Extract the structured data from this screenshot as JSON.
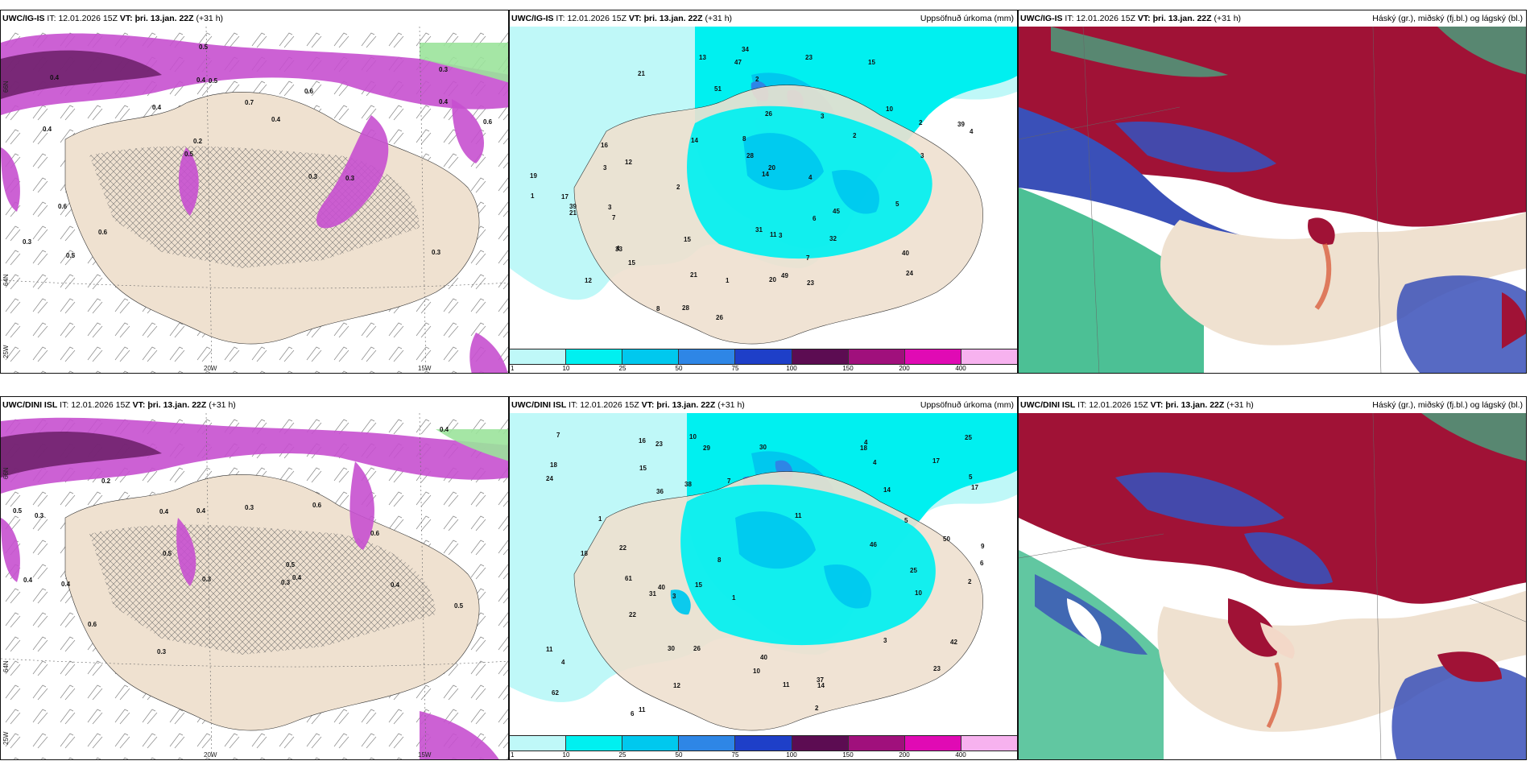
{
  "panels": [
    {
      "model": "UWC/IG-IS",
      "it_label": "IT:",
      "it_value": "12.01.2026 15Z",
      "vt_label": "VT:",
      "vt_value": "þri. 13.jan. 22Z",
      "lead": "(+31 h)",
      "product": "",
      "axis_labels": {
        "lon_a": "20W",
        "lon_b": "15W",
        "lat": "64N",
        "lat_b": "66N",
        "lon_c": "25W"
      },
      "value_labels": [
        "0.3",
        "0.4",
        "0.3",
        "0.5",
        "0.6",
        "0.5",
        "0.4",
        "0.7",
        "0.6",
        "0.4",
        "0.3",
        "0.6",
        "0.5",
        "0.4",
        "0.3",
        "0.4",
        "0.5",
        "0.6",
        "0.3",
        "0.4",
        "0.2"
      ]
    },
    {
      "model": "UWC/IG-IS",
      "it_label": "IT:",
      "it_value": "12.01.2026 15Z",
      "vt_label": "VT:",
      "vt_value": "þri. 13.jan. 22Z",
      "lead": "(+31 h)",
      "product": "Uppsöfnuð úrkoma (mm)",
      "value_labels": [
        "12",
        "15",
        "21",
        "10",
        "11",
        "12",
        "7",
        "4",
        "2",
        "2",
        "17",
        "34",
        "32",
        "14",
        "26",
        "13",
        "24",
        "19",
        "33",
        "28",
        "23",
        "47",
        "51",
        "20",
        "28",
        "21",
        "39",
        "23",
        "26",
        "45",
        "16",
        "15",
        "49",
        "31",
        "40",
        "21",
        "39",
        "4",
        "3",
        "5",
        "4",
        "2",
        "1",
        "3",
        "1",
        "3",
        "6",
        "20",
        "15",
        "7",
        "14",
        "8",
        "8",
        "3",
        "2",
        "3"
      ],
      "colorbar": [
        "1",
        "10",
        "25",
        "50",
        "75",
        "100",
        "150",
        "200",
        "400"
      ]
    },
    {
      "model": "UWC/IG-IS",
      "it_label": "IT:",
      "it_value": "12.01.2026 15Z",
      "vt_label": "VT:",
      "vt_value": "þri. 13.jan. 22Z",
      "lead": "(+31 h)",
      "product": "Háský (gr.), miðský (fj.bl.) og lágský (bl.)"
    },
    {
      "model": "UWC/DINI ISL",
      "it_label": "IT:",
      "it_value": "12.01.2026 15Z",
      "vt_label": "VT:",
      "vt_value": "þri. 13.jan. 22Z",
      "lead": "(+31 h)",
      "product": "",
      "axis_labels": {
        "lon_a": "20W",
        "lon_b": "15W",
        "lat": "64N",
        "lat_b": "66N",
        "lon_c": "25W"
      },
      "value_labels": [
        "0.4",
        "0.3",
        "0.4",
        "0.3",
        "0.5",
        "0.4",
        "0.6",
        "0.5",
        "0.4",
        "0.3",
        "0.6",
        "0.5",
        "0.4",
        "0.3",
        "0.4",
        "0.5",
        "0.6",
        "0.4",
        "0.3",
        "0.2"
      ]
    },
    {
      "model": "UWC/DINI ISL",
      "it_label": "IT:",
      "it_value": "12.01.2026 15Z",
      "vt_label": "VT:",
      "vt_value": "þri. 13.jan. 22Z",
      "lead": "(+31 h)",
      "product": "Uppsöfnuð úrkoma (mm)",
      "value_labels": [
        "10",
        "18",
        "11",
        "9",
        "6",
        "10",
        "11",
        "23",
        "62",
        "50",
        "61",
        "40",
        "38",
        "26",
        "30",
        "22",
        "18",
        "11",
        "17",
        "14",
        "16",
        "37",
        "8",
        "7",
        "5",
        "4",
        "2",
        "3",
        "17",
        "18",
        "25",
        "29",
        "36",
        "12",
        "10",
        "14",
        "11",
        "22",
        "42",
        "25",
        "31",
        "24",
        "46",
        "23",
        "40",
        "30",
        "15",
        "2",
        "6",
        "7",
        "4",
        "4",
        "3",
        "1",
        "5",
        "1",
        "15"
      ],
      "colorbar": [
        "1",
        "10",
        "25",
        "50",
        "75",
        "100",
        "150",
        "200",
        "400"
      ]
    },
    {
      "model": "UWC/DINI ISL",
      "it_label": "IT:",
      "it_value": "12.01.2026 15Z",
      "vt_label": "VT:",
      "vt_value": "þri. 13.jan. 22Z",
      "lead": "(+31 h)",
      "product": "Háský (gr.), miðský (fj.bl.) og lágský (bl.)"
    }
  ],
  "colors": {
    "land": "#efe1d0",
    "precip_levels": [
      "#bff8f8",
      "#00f0f0",
      "#00c8ee",
      "#2e86e6",
      "#1e3fc8",
      "#5c0c52",
      "#a0107c",
      "#e00ab4",
      "#f7b2ef"
    ],
    "cloud_high": "#39b98a",
    "cloud_mid": "#a01236",
    "cloud_low": "#3a50b8",
    "mslp_purple": "#c750cf",
    "mslp_dark": "#6a1e66"
  }
}
